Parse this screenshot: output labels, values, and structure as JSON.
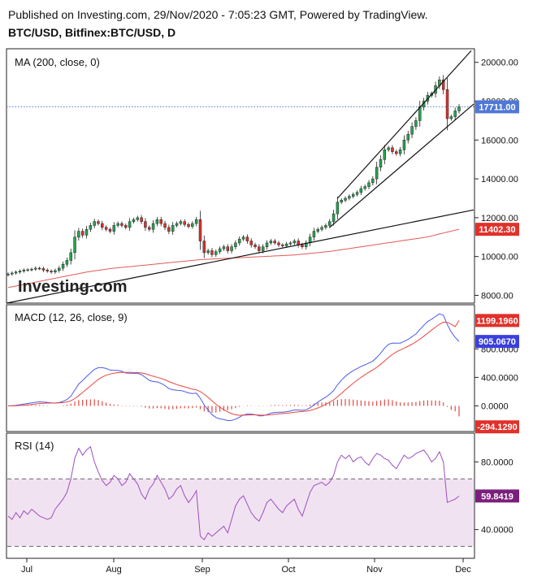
{
  "header": {
    "published": "Published on Investing.com, 29/Nov/2020 - 7:05:23 GMT, Powered by TradingView.",
    "symbol": "BTC/USD, Bitfinex:BTC/USD, D"
  },
  "watermark": "Investing.com",
  "colors": {
    "candle_up": "#26a651",
    "candle_down": "#e0312a",
    "ma_line": "#e25a53",
    "macd_line": "#4a5ae8",
    "signal_line": "#e8473f",
    "hist_bar": "#e24a43",
    "rsi_line": "#9b4fbf",
    "rsi_band": "#f1e2f1",
    "price_marker": "#4f78d6",
    "ma_marker": "#e0312a",
    "macd_marker": "#3a3fe0",
    "signal_marker": "#e0312a",
    "rsi_marker": "#7b1f7c"
  },
  "chart_data": [
    {
      "panel": "price",
      "type": "candlestick",
      "indicator_label": "MA (200, close, 0)",
      "x_ticks": [
        "Jul",
        "Aug",
        "Sep",
        "Oct",
        "Nov",
        "Dec"
      ],
      "y_ticks": [
        "20000.00",
        "18000.00",
        "16000.00",
        "14000.00",
        "12000.00",
        "10000.00",
        "8000.00"
      ],
      "y_range": [
        7600,
        20700
      ],
      "last_price": 17711.0,
      "last_price_label": "17711.00",
      "ma_last": 11402.3,
      "ma_last_label": "11402.30",
      "closes": [
        9100,
        9150,
        9200,
        9250,
        9300,
        9320,
        9350,
        9400,
        9380,
        9300,
        9250,
        9200,
        9280,
        9400,
        9600,
        9800,
        10200,
        11000,
        11300,
        11100,
        11400,
        11600,
        11800,
        11700,
        11500,
        11400,
        11300,
        11600,
        11700,
        11600,
        11500,
        11800,
        11900,
        12000,
        11800,
        11500,
        11400,
        11700,
        11900,
        11700,
        11500,
        11300,
        11600,
        11700,
        11800,
        11650,
        11550,
        11700,
        11900,
        10800,
        10200,
        10300,
        10100,
        10250,
        10400,
        10500,
        10300,
        10500,
        10700,
        10900,
        11000,
        10800,
        10600,
        10500,
        10300,
        10500,
        10700,
        10800,
        10700,
        10600,
        10550,
        10650,
        10700,
        10800,
        10600,
        10500,
        10700,
        11000,
        11300,
        11400,
        11500,
        11600,
        11800,
        12200,
        12800,
        12900,
        13000,
        13100,
        13200,
        13300,
        13500,
        13600,
        13800,
        14000,
        14600,
        15000,
        15500,
        15600,
        15400,
        15300,
        15500,
        16000,
        16300,
        16700,
        17000,
        17700,
        18000,
        18300,
        18400,
        18800,
        19100,
        18600,
        17100,
        17200,
        17500,
        17711
      ],
      "ma200": [
        8400,
        8440,
        8480,
        8520,
        8560,
        8600,
        8640,
        8680,
        8720,
        8760,
        8800,
        8840,
        8880,
        8920,
        8960,
        9000,
        9040,
        9080,
        9120,
        9160,
        9200,
        9230,
        9260,
        9290,
        9320,
        9350,
        9380,
        9400,
        9420,
        9440,
        9460,
        9480,
        9500,
        9520,
        9540,
        9560,
        9580,
        9600,
        9620,
        9640,
        9660,
        9680,
        9700,
        9720,
        9740,
        9760,
        9780,
        9800,
        9820,
        9840,
        9850,
        9860,
        9870,
        9880,
        9890,
        9900,
        9910,
        9920,
        9930,
        9940,
        9950,
        9960,
        9970,
        9980,
        9990,
        10000,
        10010,
        10020,
        10030,
        10040,
        10050,
        10060,
        10070,
        10080,
        10100,
        10120,
        10140,
        10160,
        10180,
        10200,
        10220,
        10240,
        10260,
        10290,
        10320,
        10350,
        10380,
        10410,
        10440,
        10470,
        10500,
        10530,
        10560,
        10590,
        10620,
        10650,
        10680,
        10710,
        10740,
        10770,
        10800,
        10830,
        10860,
        10890,
        10920,
        10950,
        10980,
        11010,
        11060,
        11110,
        11160,
        11210,
        11260,
        11310,
        11360,
        11402
      ]
    },
    {
      "panel": "macd",
      "type": "line+histogram",
      "indicator_label": "MACD (12, 26, close, 9)",
      "y_ticks": [
        "800.0000",
        "400.0000",
        "0.0000"
      ],
      "y_range": [
        -360,
        1420
      ],
      "signal_last": 1199.196,
      "signal_label": "1199.1960",
      "macd_last": 905.067,
      "macd_label": "905.0670",
      "hist_last": -294.129,
      "hist_label": "-294.1290"
    },
    {
      "panel": "rsi",
      "type": "line",
      "indicator_label": "RSI (14)",
      "y_ticks": [
        "80.0000",
        "40.0000"
      ],
      "y_range": [
        23,
        97
      ],
      "band": [
        30,
        70
      ],
      "rsi_last": 59.8419,
      "rsi_label": "59.8419",
      "values": [
        48,
        46,
        50,
        47,
        51,
        49,
        52,
        50,
        48,
        47,
        46,
        47,
        52,
        55,
        58,
        62,
        70,
        82,
        88,
        84,
        87,
        89,
        80,
        74,
        69,
        66,
        68,
        72,
        70,
        66,
        68,
        73,
        70,
        67,
        61,
        58,
        64,
        67,
        72,
        68,
        64,
        58,
        60,
        64,
        66,
        60,
        56,
        59,
        63,
        36,
        34,
        38,
        36,
        38,
        40,
        42,
        38,
        46,
        54,
        58,
        60,
        55,
        50,
        47,
        45,
        50,
        56,
        58,
        55,
        52,
        50,
        54,
        56,
        58,
        52,
        48,
        55,
        62,
        66,
        67,
        68,
        66,
        68,
        72,
        80,
        84,
        82,
        84,
        80,
        82,
        83,
        80,
        78,
        82,
        85,
        84,
        82,
        81,
        78,
        76,
        80,
        84,
        82,
        83,
        85,
        86,
        87,
        84,
        80,
        82,
        86,
        80,
        56,
        57,
        58,
        59.8
      ]
    }
  ]
}
